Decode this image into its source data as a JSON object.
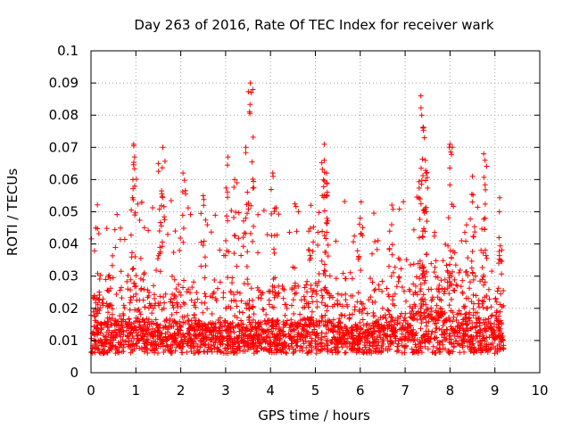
{
  "chart_data": {
    "type": "scatter",
    "title": "Day 263 of 2016, Rate Of TEC Index for receiver wark",
    "xlabel": "GPS time / hours",
    "ylabel": "ROTI / TECUs",
    "xlim": [
      0,
      10
    ],
    "ylim": [
      0,
      0.1
    ],
    "xticks": [
      "0",
      "1",
      "2",
      "3",
      "4",
      "5",
      "6",
      "7",
      "8",
      "9",
      "10"
    ],
    "yticks": [
      "0",
      "0.01",
      "0.02",
      "0.03",
      "0.04",
      "0.05",
      "0.06",
      "0.07",
      "0.08",
      "0.09",
      "0.1"
    ],
    "grid": true,
    "marker": "+",
    "color": "#ff0000",
    "time_range_hours": [
      0.0,
      9.2
    ],
    "notable_points": [
      {
        "x": 0.95,
        "y": 0.071
      },
      {
        "x": 0.97,
        "y": 0.067
      },
      {
        "x": 1.6,
        "y": 0.07
      },
      {
        "x": 1.5,
        "y": 0.065
      },
      {
        "x": 2.05,
        "y": 0.062
      },
      {
        "x": 2.5,
        "y": 0.055
      },
      {
        "x": 3.05,
        "y": 0.067
      },
      {
        "x": 3.2,
        "y": 0.06
      },
      {
        "x": 3.45,
        "y": 0.07
      },
      {
        "x": 3.55,
        "y": 0.09
      },
      {
        "x": 3.57,
        "y": 0.087
      },
      {
        "x": 4.05,
        "y": 0.062
      },
      {
        "x": 4.9,
        "y": 0.052
      },
      {
        "x": 5.2,
        "y": 0.071
      },
      {
        "x": 5.2,
        "y": 0.066
      },
      {
        "x": 5.25,
        "y": 0.062
      },
      {
        "x": 6.0,
        "y": 0.048
      },
      {
        "x": 6.7,
        "y": 0.046
      },
      {
        "x": 7.35,
        "y": 0.086
      },
      {
        "x": 7.37,
        "y": 0.08
      },
      {
        "x": 7.4,
        "y": 0.076
      },
      {
        "x": 7.43,
        "y": 0.073
      },
      {
        "x": 7.45,
        "y": 0.066
      },
      {
        "x": 8.0,
        "y": 0.071
      },
      {
        "x": 8.05,
        "y": 0.07
      },
      {
        "x": 8.5,
        "y": 0.061
      },
      {
        "x": 8.75,
        "y": 0.068
      },
      {
        "x": 8.78,
        "y": 0.066
      },
      {
        "x": 9.1,
        "y": 0.05
      }
    ],
    "bulk_level_by_hour": [
      {
        "x": 0,
        "y": 0.012
      },
      {
        "x": 1,
        "y": 0.014
      },
      {
        "x": 2,
        "y": 0.013
      },
      {
        "x": 3,
        "y": 0.012
      },
      {
        "x": 4,
        "y": 0.013
      },
      {
        "x": 5,
        "y": 0.014
      },
      {
        "x": 6,
        "y": 0.011
      },
      {
        "x": 7,
        "y": 0.016
      },
      {
        "x": 8,
        "y": 0.017
      },
      {
        "x": 9,
        "y": 0.013
      }
    ]
  }
}
